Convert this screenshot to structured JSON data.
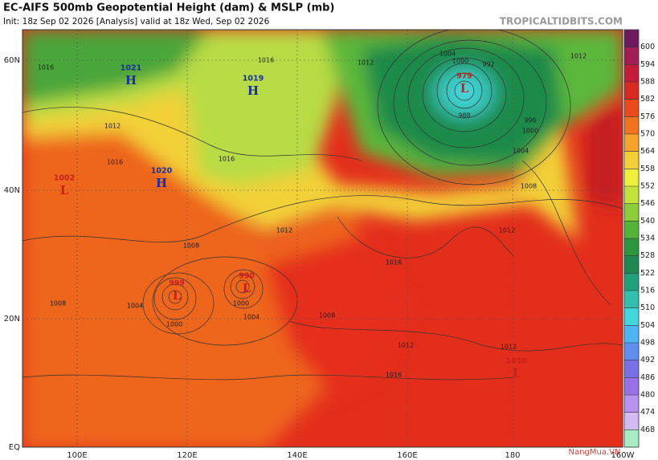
{
  "header": {
    "title": "EC-AIFS 500mb Geopotential Height (dam) & MSLP (mb)",
    "subtitle": "Init: 18z Sep 02 2026  [Analysis]   valid at 18z Wed, Sep 02 2026",
    "source": "TROPICALTIDBITS.COM"
  },
  "latitude_labels": [
    "60N",
    "40N",
    "20N",
    "EQ"
  ],
  "longitude_labels": [
    "100E",
    "120E",
    "140E",
    "160E",
    "180",
    "160W"
  ],
  "colorbar": {
    "levels": [
      600,
      594,
      588,
      582,
      576,
      570,
      564,
      558,
      552,
      546,
      540,
      534,
      528,
      522,
      516,
      510,
      504,
      498,
      492,
      486,
      480,
      474,
      468
    ],
    "colors": [
      "#6e1a5e",
      "#a31d55",
      "#c41c38",
      "#d92a22",
      "#ea4a1c",
      "#f2731f",
      "#f5a32c",
      "#f5cf3a",
      "#eef03c",
      "#c4e23e",
      "#8ccd3c",
      "#55b337",
      "#2b963c",
      "#1f8751",
      "#22a07c",
      "#32bfae",
      "#43d6df",
      "#4fb4ef",
      "#608ef0",
      "#7a70e6",
      "#9a72e8",
      "#b892ef",
      "#d2baf2",
      "#a6ebc4"
    ]
  },
  "pressure_centers": [
    {
      "symbol": "H",
      "value": "1021"
    },
    {
      "symbol": "H",
      "value": "1019"
    },
    {
      "symbol": "H",
      "value": "1020"
    },
    {
      "symbol": "L",
      "value": "979"
    },
    {
      "symbol": "L",
      "value": "999"
    },
    {
      "symbol": "L",
      "value": "990"
    },
    {
      "symbol": "L",
      "value": "1010"
    },
    {
      "symbol": "L",
      "value": "1002"
    }
  ],
  "isobar_labels": [
    "1016",
    "1016",
    "1012",
    "1004",
    "1000",
    "992",
    "988",
    "996",
    "1000",
    "1004",
    "1008",
    "1012",
    "1012",
    "1016",
    "1012",
    "1008",
    "1004",
    "1000",
    "1000",
    "1004",
    "1008",
    "1012",
    "1012",
    "1016",
    "1016",
    "1016",
    "1012",
    "1008"
  ],
  "watermark": "NangMua.VN"
}
